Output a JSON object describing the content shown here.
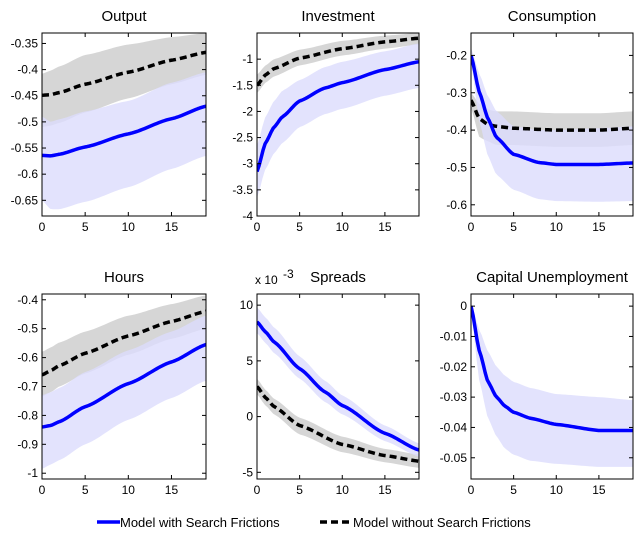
{
  "colors": {
    "series_with": "#0000ff",
    "series_without": "#000000",
    "band_with": "#dcdcfc",
    "band_without": "#d4d4d4",
    "band_overlap": "#c2c2dc"
  },
  "legend": {
    "series_with": "Model with Search Frictions",
    "series_without": "Model without Search Frictions"
  },
  "chart_data": [
    {
      "type": "line",
      "title": "Output",
      "x_range": [
        0,
        19
      ],
      "ylim": [
        -0.68,
        -0.33
      ],
      "xticks": [
        0,
        5,
        10,
        15
      ],
      "xtick_labels": [
        "0",
        "5",
        "10",
        "15"
      ],
      "yticks": [
        -0.65,
        -0.6,
        -0.55,
        -0.5,
        -0.45,
        -0.4,
        -0.35
      ],
      "ytick_labels": [
        "-0.65",
        "-0.6",
        "-0.55",
        "-0.5",
        "-0.45",
        "-0.4",
        "-0.35"
      ],
      "exponent_label": "",
      "series": [
        {
          "name": "Model with Search Frictions",
          "style": "solid",
          "x": [
            0,
            1,
            2,
            5,
            10,
            15,
            19
          ],
          "values": [
            -0.564,
            -0.565,
            -0.562,
            -0.548,
            -0.523,
            -0.494,
            -0.47
          ],
          "band_lower": [
            -0.65,
            -0.667,
            -0.667,
            -0.653,
            -0.625,
            -0.59,
            -0.565
          ],
          "band_upper": [
            -0.49,
            -0.5,
            -0.495,
            -0.48,
            -0.46,
            -0.425,
            -0.405
          ]
        },
        {
          "name": "Model without Search Frictions",
          "style": "dashed",
          "x": [
            0,
            1,
            2,
            5,
            10,
            15,
            19
          ],
          "values": [
            -0.449,
            -0.448,
            -0.444,
            -0.428,
            -0.405,
            -0.382,
            -0.367
          ],
          "band_lower": [
            -0.51,
            -0.507,
            -0.502,
            -0.482,
            -0.455,
            -0.428,
            -0.41
          ],
          "band_upper": [
            -0.408,
            -0.402,
            -0.394,
            -0.372,
            -0.352,
            -0.338,
            -0.33
          ]
        }
      ]
    },
    {
      "type": "line",
      "title": "Investment",
      "x_range": [
        0,
        19
      ],
      "ylim": [
        -4.0,
        -0.5
      ],
      "xticks": [
        0,
        5,
        10,
        15
      ],
      "xtick_labels": [
        "0",
        "5",
        "10",
        "15"
      ],
      "yticks": [
        -4,
        -3.5,
        -3,
        -2.5,
        -2,
        -1.5,
        -1
      ],
      "ytick_labels": [
        "-4",
        "-3.5",
        "-3",
        "-2.5",
        "-2",
        "-1.5",
        "-1"
      ],
      "exponent_label": "",
      "series": [
        {
          "name": "Model with Search Frictions",
          "style": "solid",
          "x": [
            0,
            1,
            2,
            3,
            5,
            8,
            10,
            15,
            19
          ],
          "values": [
            -3.15,
            -2.6,
            -2.3,
            -2.1,
            -1.8,
            -1.55,
            -1.45,
            -1.2,
            -1.05
          ],
          "band_lower": [
            -3.65,
            -3.1,
            -2.8,
            -2.6,
            -2.3,
            -2.05,
            -1.95,
            -1.7,
            -1.55
          ],
          "band_upper": [
            -2.65,
            -2.1,
            -1.8,
            -1.6,
            -1.4,
            -1.15,
            -1.05,
            -0.85,
            -0.7
          ]
        },
        {
          "name": "Model without Search Frictions",
          "style": "dashed",
          "x": [
            0,
            1,
            2,
            5,
            10,
            15,
            19
          ],
          "values": [
            -1.5,
            -1.3,
            -1.18,
            -0.98,
            -0.8,
            -0.67,
            -0.6
          ],
          "band_lower": [
            -1.65,
            -1.45,
            -1.33,
            -1.12,
            -0.93,
            -0.8,
            -0.72
          ],
          "band_upper": [
            -1.3,
            -1.12,
            -1.0,
            -0.82,
            -0.65,
            -0.55,
            -0.5
          ]
        }
      ]
    },
    {
      "type": "line",
      "title": "Consumption",
      "x_range": [
        0,
        19
      ],
      "ylim": [
        -0.63,
        -0.14
      ],
      "xticks": [
        0,
        5,
        10,
        15
      ],
      "xtick_labels": [
        "0",
        "5",
        "10",
        "15"
      ],
      "yticks": [
        -0.6,
        -0.5,
        -0.4,
        -0.3,
        -0.2
      ],
      "ytick_labels": [
        "-0.6",
        "-0.5",
        "-0.4",
        "-0.3",
        "-0.2"
      ],
      "exponent_label": "",
      "series": [
        {
          "name": "Model with Search Frictions",
          "style": "solid",
          "x": [
            0,
            1,
            2,
            3,
            5,
            8,
            10,
            15,
            19
          ],
          "values": [
            -0.2,
            -0.3,
            -0.37,
            -0.42,
            -0.465,
            -0.487,
            -0.492,
            -0.492,
            -0.488
          ],
          "band_lower": [
            -0.22,
            -0.38,
            -0.47,
            -0.52,
            -0.56,
            -0.585,
            -0.59,
            -0.592,
            -0.59
          ],
          "band_upper": [
            -0.18,
            -0.25,
            -0.31,
            -0.35,
            -0.39,
            -0.4,
            -0.4,
            -0.395,
            -0.39
          ]
        },
        {
          "name": "Model without Search Frictions",
          "style": "dashed",
          "x": [
            0,
            1,
            2,
            3,
            5,
            10,
            15,
            19
          ],
          "values": [
            -0.32,
            -0.37,
            -0.385,
            -0.39,
            -0.395,
            -0.4,
            -0.4,
            -0.395
          ],
          "band_lower": [
            -0.34,
            -0.42,
            -0.43,
            -0.44,
            -0.44,
            -0.445,
            -0.445,
            -0.44
          ],
          "band_upper": [
            -0.3,
            -0.33,
            -0.345,
            -0.35,
            -0.35,
            -0.355,
            -0.355,
            -0.35
          ]
        }
      ]
    },
    {
      "type": "line",
      "title": "Hours",
      "x_range": [
        0,
        19
      ],
      "ylim": [
        -1.02,
        -0.38
      ],
      "xticks": [
        0,
        5,
        10,
        15
      ],
      "xtick_labels": [
        "0",
        "5",
        "10",
        "15"
      ],
      "yticks": [
        -1,
        -0.9,
        -0.8,
        -0.7,
        -0.6,
        -0.5,
        -0.4
      ],
      "ytick_labels": [
        "-1",
        "-0.9",
        "-0.8",
        "-0.7",
        "-0.6",
        "-0.5",
        "-0.4"
      ],
      "exponent_label": "",
      "series": [
        {
          "name": "Model with Search Frictions",
          "style": "solid",
          "x": [
            0,
            1,
            2,
            5,
            10,
            15,
            19
          ],
          "values": [
            -0.84,
            -0.835,
            -0.822,
            -0.77,
            -0.69,
            -0.615,
            -0.555
          ],
          "band_lower": [
            -0.985,
            -0.97,
            -0.955,
            -0.9,
            -0.815,
            -0.74,
            -0.68
          ],
          "band_upper": [
            -0.73,
            -0.72,
            -0.705,
            -0.65,
            -0.575,
            -0.51,
            -0.455
          ]
        },
        {
          "name": "Model without Search Frictions",
          "style": "dashed",
          "x": [
            0,
            1,
            2,
            5,
            10,
            15,
            19
          ],
          "values": [
            -0.66,
            -0.645,
            -0.628,
            -0.585,
            -0.525,
            -0.475,
            -0.44
          ],
          "band_lower": [
            -0.735,
            -0.72,
            -0.7,
            -0.655,
            -0.59,
            -0.535,
            -0.5
          ],
          "band_upper": [
            -0.58,
            -0.565,
            -0.548,
            -0.51,
            -0.455,
            -0.415,
            -0.385
          ]
        }
      ]
    },
    {
      "type": "line",
      "title": "Spreads",
      "x_range": [
        0,
        19
      ],
      "ylim": [
        -5.6,
        11.0
      ],
      "xticks": [
        0,
        5,
        10,
        15
      ],
      "xtick_labels": [
        "0",
        "5",
        "10",
        "15"
      ],
      "yticks": [
        -5,
        0,
        5,
        10
      ],
      "ytick_labels": [
        "-5",
        "0",
        "5",
        "10"
      ],
      "exponent_label": "x 10",
      "exponent_power": "-3",
      "series": [
        {
          "name": "Model with Search Frictions",
          "style": "solid",
          "x": [
            0,
            1,
            2,
            5,
            8,
            10,
            15,
            19
          ],
          "values": [
            8.5,
            7.6,
            6.7,
            4.3,
            2.2,
            1.0,
            -1.5,
            -3.0
          ],
          "band_lower": [
            7.5,
            6.6,
            5.7,
            3.4,
            1.3,
            0.2,
            -2.2,
            -3.6
          ],
          "band_upper": [
            9.8,
            8.9,
            8.0,
            5.4,
            3.2,
            1.9,
            -0.8,
            -2.4
          ]
        },
        {
          "name": "Model without Search Frictions",
          "style": "dashed",
          "x": [
            0,
            1,
            2,
            5,
            10,
            15,
            19
          ],
          "values": [
            2.7,
            1.7,
            0.9,
            -0.8,
            -2.5,
            -3.5,
            -4.0
          ],
          "band_lower": [
            2.0,
            1.0,
            0.2,
            -1.6,
            -3.2,
            -4.1,
            -4.6
          ],
          "band_upper": [
            3.4,
            2.4,
            1.6,
            -0.1,
            -1.8,
            -2.9,
            -3.4
          ]
        }
      ]
    },
    {
      "type": "line",
      "title": "Capital Unemployment",
      "x_range": [
        0,
        19
      ],
      "ylim": [
        -0.057,
        0.004
      ],
      "xticks": [
        0,
        5,
        10,
        15
      ],
      "xtick_labels": [
        "0",
        "5",
        "10",
        "15"
      ],
      "yticks": [
        -0.05,
        -0.04,
        -0.03,
        -0.02,
        -0.01,
        0
      ],
      "ytick_labels": [
        "-0.05",
        "-0.04",
        "-0.03",
        "-0.02",
        "-0.01",
        "0"
      ],
      "exponent_label": "",
      "series": [
        {
          "name": "Model with Search Frictions",
          "style": "solid",
          "x": [
            0,
            1,
            2,
            3,
            4,
            5,
            7,
            10,
            15,
            19
          ],
          "values": [
            0,
            -0.015,
            -0.025,
            -0.03,
            -0.033,
            -0.035,
            -0.037,
            -0.039,
            -0.041,
            -0.041
          ],
          "band_lower": [
            -0.002,
            -0.025,
            -0.037,
            -0.043,
            -0.047,
            -0.049,
            -0.051,
            -0.052,
            -0.053,
            -0.053
          ],
          "band_upper": [
            0.001,
            -0.008,
            -0.015,
            -0.02,
            -0.023,
            -0.025,
            -0.027,
            -0.029,
            -0.03,
            -0.031
          ]
        }
      ]
    }
  ]
}
